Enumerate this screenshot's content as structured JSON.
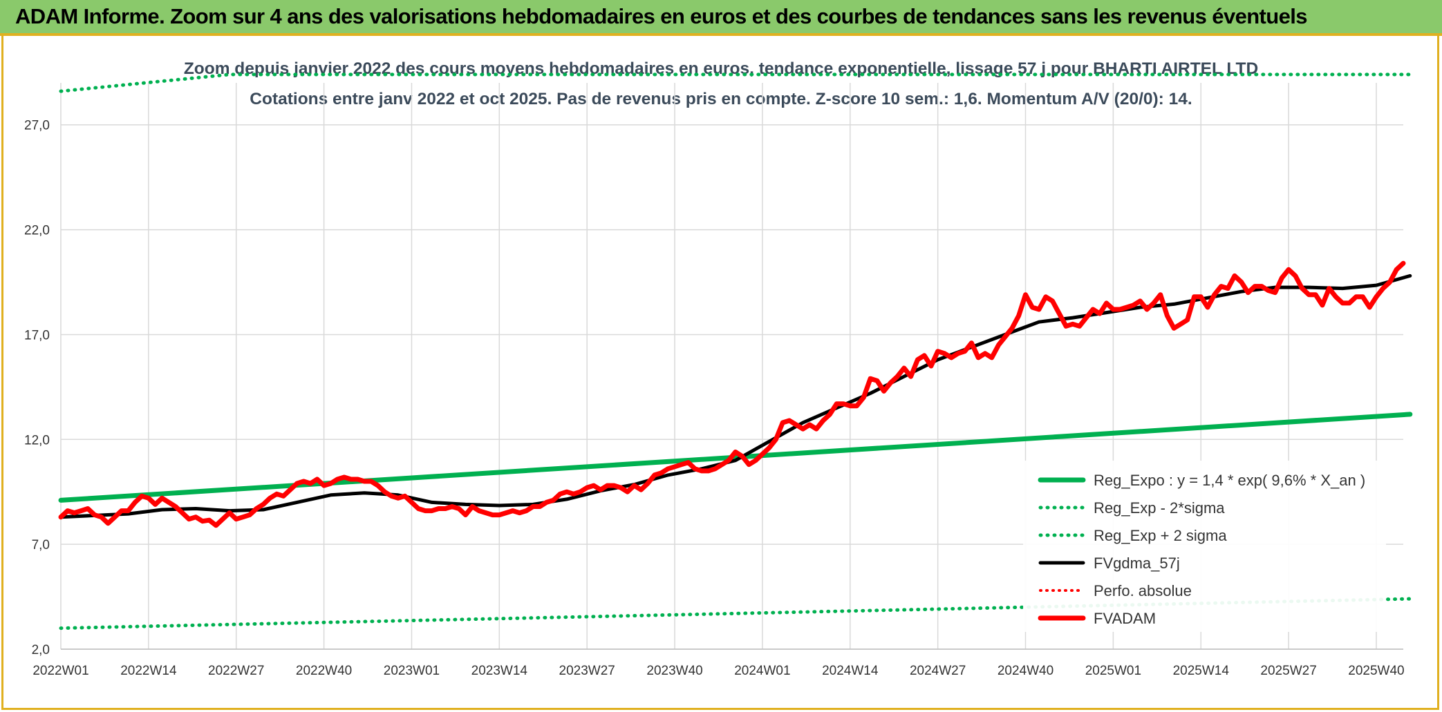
{
  "header": {
    "title": "ADAM Informe. Zoom sur 4 ans des valorisations hebdomadaires en euros et des courbes de tendances sans les revenus éventuels",
    "bg_color": "#8ac96b",
    "accent_color": "#e0b020"
  },
  "chart_data": {
    "type": "line",
    "title_line1": "Zoom depuis janvier 2022 des cours moyens hebdomadaires en euros, tendance exponentielle, lissage 57 j pour BHARTI AIRTEL LTD",
    "title_line2": "Cotations entre janv 2022 et oct 2025. Pas de revenus pris en compte. Z-score 10 sem.: 1,6. Momentum A/V (20/0): 14.",
    "ylim": [
      2,
      29
    ],
    "y_ticks": [
      "2,0",
      "7,0",
      "12,0",
      "17,0",
      "22,0",
      "27,0"
    ],
    "x_tick_labels": [
      "2022W01",
      "2022W14",
      "2022W27",
      "2022W40",
      "2023W01",
      "2023W14",
      "2023W27",
      "2023W40",
      "2024W01",
      "2024W14",
      "2024W27",
      "2024W40",
      "2025W01",
      "2025W14",
      "2025W27",
      "2025W40"
    ],
    "x_tick_weeks": [
      0,
      13,
      26,
      39,
      52,
      65,
      78,
      91,
      104,
      117,
      130,
      143,
      156,
      169,
      182,
      195
    ],
    "week_count": 200,
    "grid": true,
    "legend_position": "bottom-right",
    "series": [
      {
        "name": "Reg_Expo : y = 1,4 * exp( 9,6% *  X_an )",
        "style": "solid",
        "color": "#00b050",
        "values": [
          [
            0,
            9.1
          ],
          [
            200,
            13.2
          ]
        ]
      },
      {
        "name": "Reg_Exp - 2*sigma",
        "style": "dotted",
        "color": "#00b050",
        "values": [
          [
            0,
            3.0
          ],
          [
            200,
            4.4
          ]
        ]
      },
      {
        "name": "Reg_Exp + 2 sigma",
        "style": "dotted",
        "color": "#00b050",
        "values": [
          [
            0,
            28.6
          ],
          [
            25,
            29.4
          ],
          [
            200,
            29.4
          ]
        ]
      },
      {
        "name": "FVgdma_57j",
        "style": "solid",
        "color": "#000000",
        "values": [
          [
            0,
            8.3
          ],
          [
            10,
            8.45
          ],
          [
            15,
            8.65
          ],
          [
            20,
            8.7
          ],
          [
            25,
            8.6
          ],
          [
            30,
            8.65
          ],
          [
            35,
            9.0
          ],
          [
            40,
            9.35
          ],
          [
            45,
            9.45
          ],
          [
            50,
            9.35
          ],
          [
            55,
            9.0
          ],
          [
            60,
            8.9
          ],
          [
            65,
            8.85
          ],
          [
            70,
            8.9
          ],
          [
            75,
            9.15
          ],
          [
            80,
            9.55
          ],
          [
            85,
            9.85
          ],
          [
            90,
            10.3
          ],
          [
            95,
            10.6
          ],
          [
            100,
            11.0
          ],
          [
            105,
            11.9
          ],
          [
            110,
            12.8
          ],
          [
            115,
            13.5
          ],
          [
            120,
            14.2
          ],
          [
            125,
            15.0
          ],
          [
            130,
            15.8
          ],
          [
            135,
            16.4
          ],
          [
            140,
            17.0
          ],
          [
            145,
            17.6
          ],
          [
            150,
            17.8
          ],
          [
            155,
            18.05
          ],
          [
            160,
            18.3
          ],
          [
            165,
            18.45
          ],
          [
            170,
            18.75
          ],
          [
            175,
            19.05
          ],
          [
            180,
            19.25
          ],
          [
            185,
            19.25
          ],
          [
            190,
            19.2
          ],
          [
            195,
            19.35
          ],
          [
            200,
            19.8
          ]
        ]
      },
      {
        "name": "Perfo. absolue",
        "style": "dotted",
        "color": "#ff0000",
        "values": []
      },
      {
        "name": "FVADAM",
        "style": "solid",
        "color": "#ff0000",
        "values": [
          [
            0,
            8.3
          ],
          [
            1,
            8.6
          ],
          [
            2,
            8.5
          ],
          [
            3,
            8.6
          ],
          [
            4,
            8.7
          ],
          [
            5,
            8.4
          ],
          [
            6,
            8.3
          ],
          [
            7,
            8.0
          ],
          [
            8,
            8.3
          ],
          [
            9,
            8.6
          ],
          [
            10,
            8.6
          ],
          [
            11,
            9.0
          ],
          [
            12,
            9.3
          ],
          [
            13,
            9.2
          ],
          [
            14,
            8.9
          ],
          [
            15,
            9.2
          ],
          [
            16,
            9.0
          ],
          [
            17,
            8.8
          ],
          [
            18,
            8.5
          ],
          [
            19,
            8.2
          ],
          [
            20,
            8.3
          ],
          [
            21,
            8.1
          ],
          [
            22,
            8.15
          ],
          [
            23,
            7.9
          ],
          [
            24,
            8.2
          ],
          [
            25,
            8.5
          ],
          [
            26,
            8.2
          ],
          [
            27,
            8.3
          ],
          [
            28,
            8.4
          ],
          [
            29,
            8.7
          ],
          [
            30,
            8.9
          ],
          [
            31,
            9.2
          ],
          [
            32,
            9.4
          ],
          [
            33,
            9.3
          ],
          [
            34,
            9.6
          ],
          [
            35,
            9.9
          ],
          [
            36,
            10.0
          ],
          [
            37,
            9.9
          ],
          [
            38,
            10.1
          ],
          [
            39,
            9.8
          ],
          [
            40,
            9.9
          ],
          [
            41,
            10.1
          ],
          [
            42,
            10.2
          ],
          [
            43,
            10.1
          ],
          [
            44,
            10.1
          ],
          [
            45,
            10.0
          ],
          [
            46,
            10.0
          ],
          [
            47,
            9.8
          ],
          [
            48,
            9.5
          ],
          [
            49,
            9.3
          ],
          [
            50,
            9.2
          ],
          [
            51,
            9.3
          ],
          [
            52,
            9.0
          ],
          [
            53,
            8.7
          ],
          [
            54,
            8.6
          ],
          [
            55,
            8.6
          ],
          [
            56,
            8.7
          ],
          [
            57,
            8.7
          ],
          [
            58,
            8.8
          ],
          [
            59,
            8.7
          ],
          [
            60,
            8.4
          ],
          [
            61,
            8.8
          ],
          [
            62,
            8.6
          ],
          [
            63,
            8.5
          ],
          [
            64,
            8.4
          ],
          [
            65,
            8.4
          ],
          [
            66,
            8.5
          ],
          [
            67,
            8.6
          ],
          [
            68,
            8.5
          ],
          [
            69,
            8.6
          ],
          [
            70,
            8.8
          ],
          [
            71,
            8.8
          ],
          [
            72,
            9.0
          ],
          [
            73,
            9.1
          ],
          [
            74,
            9.4
          ],
          [
            75,
            9.5
          ],
          [
            76,
            9.4
          ],
          [
            77,
            9.5
          ],
          [
            78,
            9.7
          ],
          [
            79,
            9.8
          ],
          [
            80,
            9.6
          ],
          [
            81,
            9.8
          ],
          [
            82,
            9.8
          ],
          [
            83,
            9.7
          ],
          [
            84,
            9.5
          ],
          [
            85,
            9.8
          ],
          [
            86,
            9.6
          ],
          [
            87,
            9.9
          ],
          [
            88,
            10.3
          ],
          [
            89,
            10.4
          ],
          [
            90,
            10.6
          ],
          [
            91,
            10.7
          ],
          [
            92,
            10.8
          ],
          [
            93,
            10.9
          ],
          [
            94,
            10.6
          ],
          [
            95,
            10.5
          ],
          [
            96,
            10.5
          ],
          [
            97,
            10.6
          ],
          [
            98,
            10.8
          ],
          [
            99,
            11.0
          ],
          [
            100,
            11.4
          ],
          [
            101,
            11.2
          ],
          [
            102,
            10.8
          ],
          [
            103,
            11.0
          ],
          [
            104,
            11.3
          ],
          [
            105,
            11.6
          ],
          [
            106,
            12.0
          ],
          [
            107,
            12.8
          ],
          [
            108,
            12.9
          ],
          [
            109,
            12.7
          ],
          [
            110,
            12.5
          ],
          [
            111,
            12.7
          ],
          [
            112,
            12.5
          ],
          [
            113,
            12.9
          ],
          [
            114,
            13.2
          ],
          [
            115,
            13.7
          ],
          [
            116,
            13.7
          ],
          [
            117,
            13.6
          ],
          [
            118,
            13.6
          ],
          [
            119,
            14.0
          ],
          [
            120,
            14.9
          ],
          [
            121,
            14.8
          ],
          [
            122,
            14.3
          ],
          [
            123,
            14.7
          ],
          [
            124,
            15.0
          ],
          [
            125,
            15.4
          ],
          [
            126,
            15.0
          ],
          [
            127,
            15.8
          ],
          [
            128,
            16.0
          ],
          [
            129,
            15.5
          ],
          [
            130,
            16.2
          ],
          [
            131,
            16.1
          ],
          [
            132,
            15.9
          ],
          [
            133,
            16.1
          ],
          [
            134,
            16.2
          ],
          [
            135,
            16.6
          ],
          [
            136,
            15.9
          ],
          [
            137,
            16.1
          ],
          [
            138,
            15.9
          ],
          [
            139,
            16.5
          ],
          [
            140,
            16.9
          ],
          [
            141,
            17.3
          ],
          [
            142,
            17.9
          ],
          [
            143,
            18.9
          ],
          [
            144,
            18.3
          ],
          [
            145,
            18.2
          ],
          [
            146,
            18.8
          ],
          [
            147,
            18.6
          ],
          [
            148,
            18.0
          ],
          [
            149,
            17.4
          ],
          [
            150,
            17.5
          ],
          [
            151,
            17.4
          ],
          [
            152,
            17.8
          ],
          [
            153,
            18.2
          ],
          [
            154,
            18.0
          ],
          [
            155,
            18.5
          ],
          [
            156,
            18.2
          ],
          [
            157,
            18.2
          ],
          [
            158,
            18.3
          ],
          [
            159,
            18.4
          ],
          [
            160,
            18.6
          ],
          [
            161,
            18.2
          ],
          [
            162,
            18.5
          ],
          [
            163,
            18.9
          ],
          [
            164,
            17.9
          ],
          [
            165,
            17.3
          ],
          [
            166,
            17.5
          ],
          [
            167,
            17.7
          ],
          [
            168,
            18.8
          ],
          [
            169,
            18.8
          ],
          [
            170,
            18.3
          ],
          [
            171,
            18.9
          ],
          [
            172,
            19.3
          ],
          [
            173,
            19.2
          ],
          [
            174,
            19.8
          ],
          [
            175,
            19.5
          ],
          [
            176,
            19.0
          ],
          [
            177,
            19.3
          ],
          [
            178,
            19.3
          ],
          [
            179,
            19.1
          ],
          [
            180,
            19.0
          ],
          [
            181,
            19.7
          ],
          [
            182,
            20.1
          ],
          [
            183,
            19.8
          ],
          [
            184,
            19.2
          ],
          [
            185,
            18.9
          ],
          [
            186,
            18.9
          ],
          [
            187,
            18.4
          ],
          [
            188,
            19.2
          ],
          [
            189,
            18.8
          ],
          [
            190,
            18.5
          ],
          [
            191,
            18.5
          ],
          [
            192,
            18.8
          ],
          [
            193,
            18.8
          ],
          [
            194,
            18.3
          ],
          [
            195,
            18.8
          ],
          [
            196,
            19.2
          ],
          [
            197,
            19.5
          ],
          [
            198,
            20.1
          ],
          [
            199,
            20.4
          ]
        ]
      }
    ]
  }
}
